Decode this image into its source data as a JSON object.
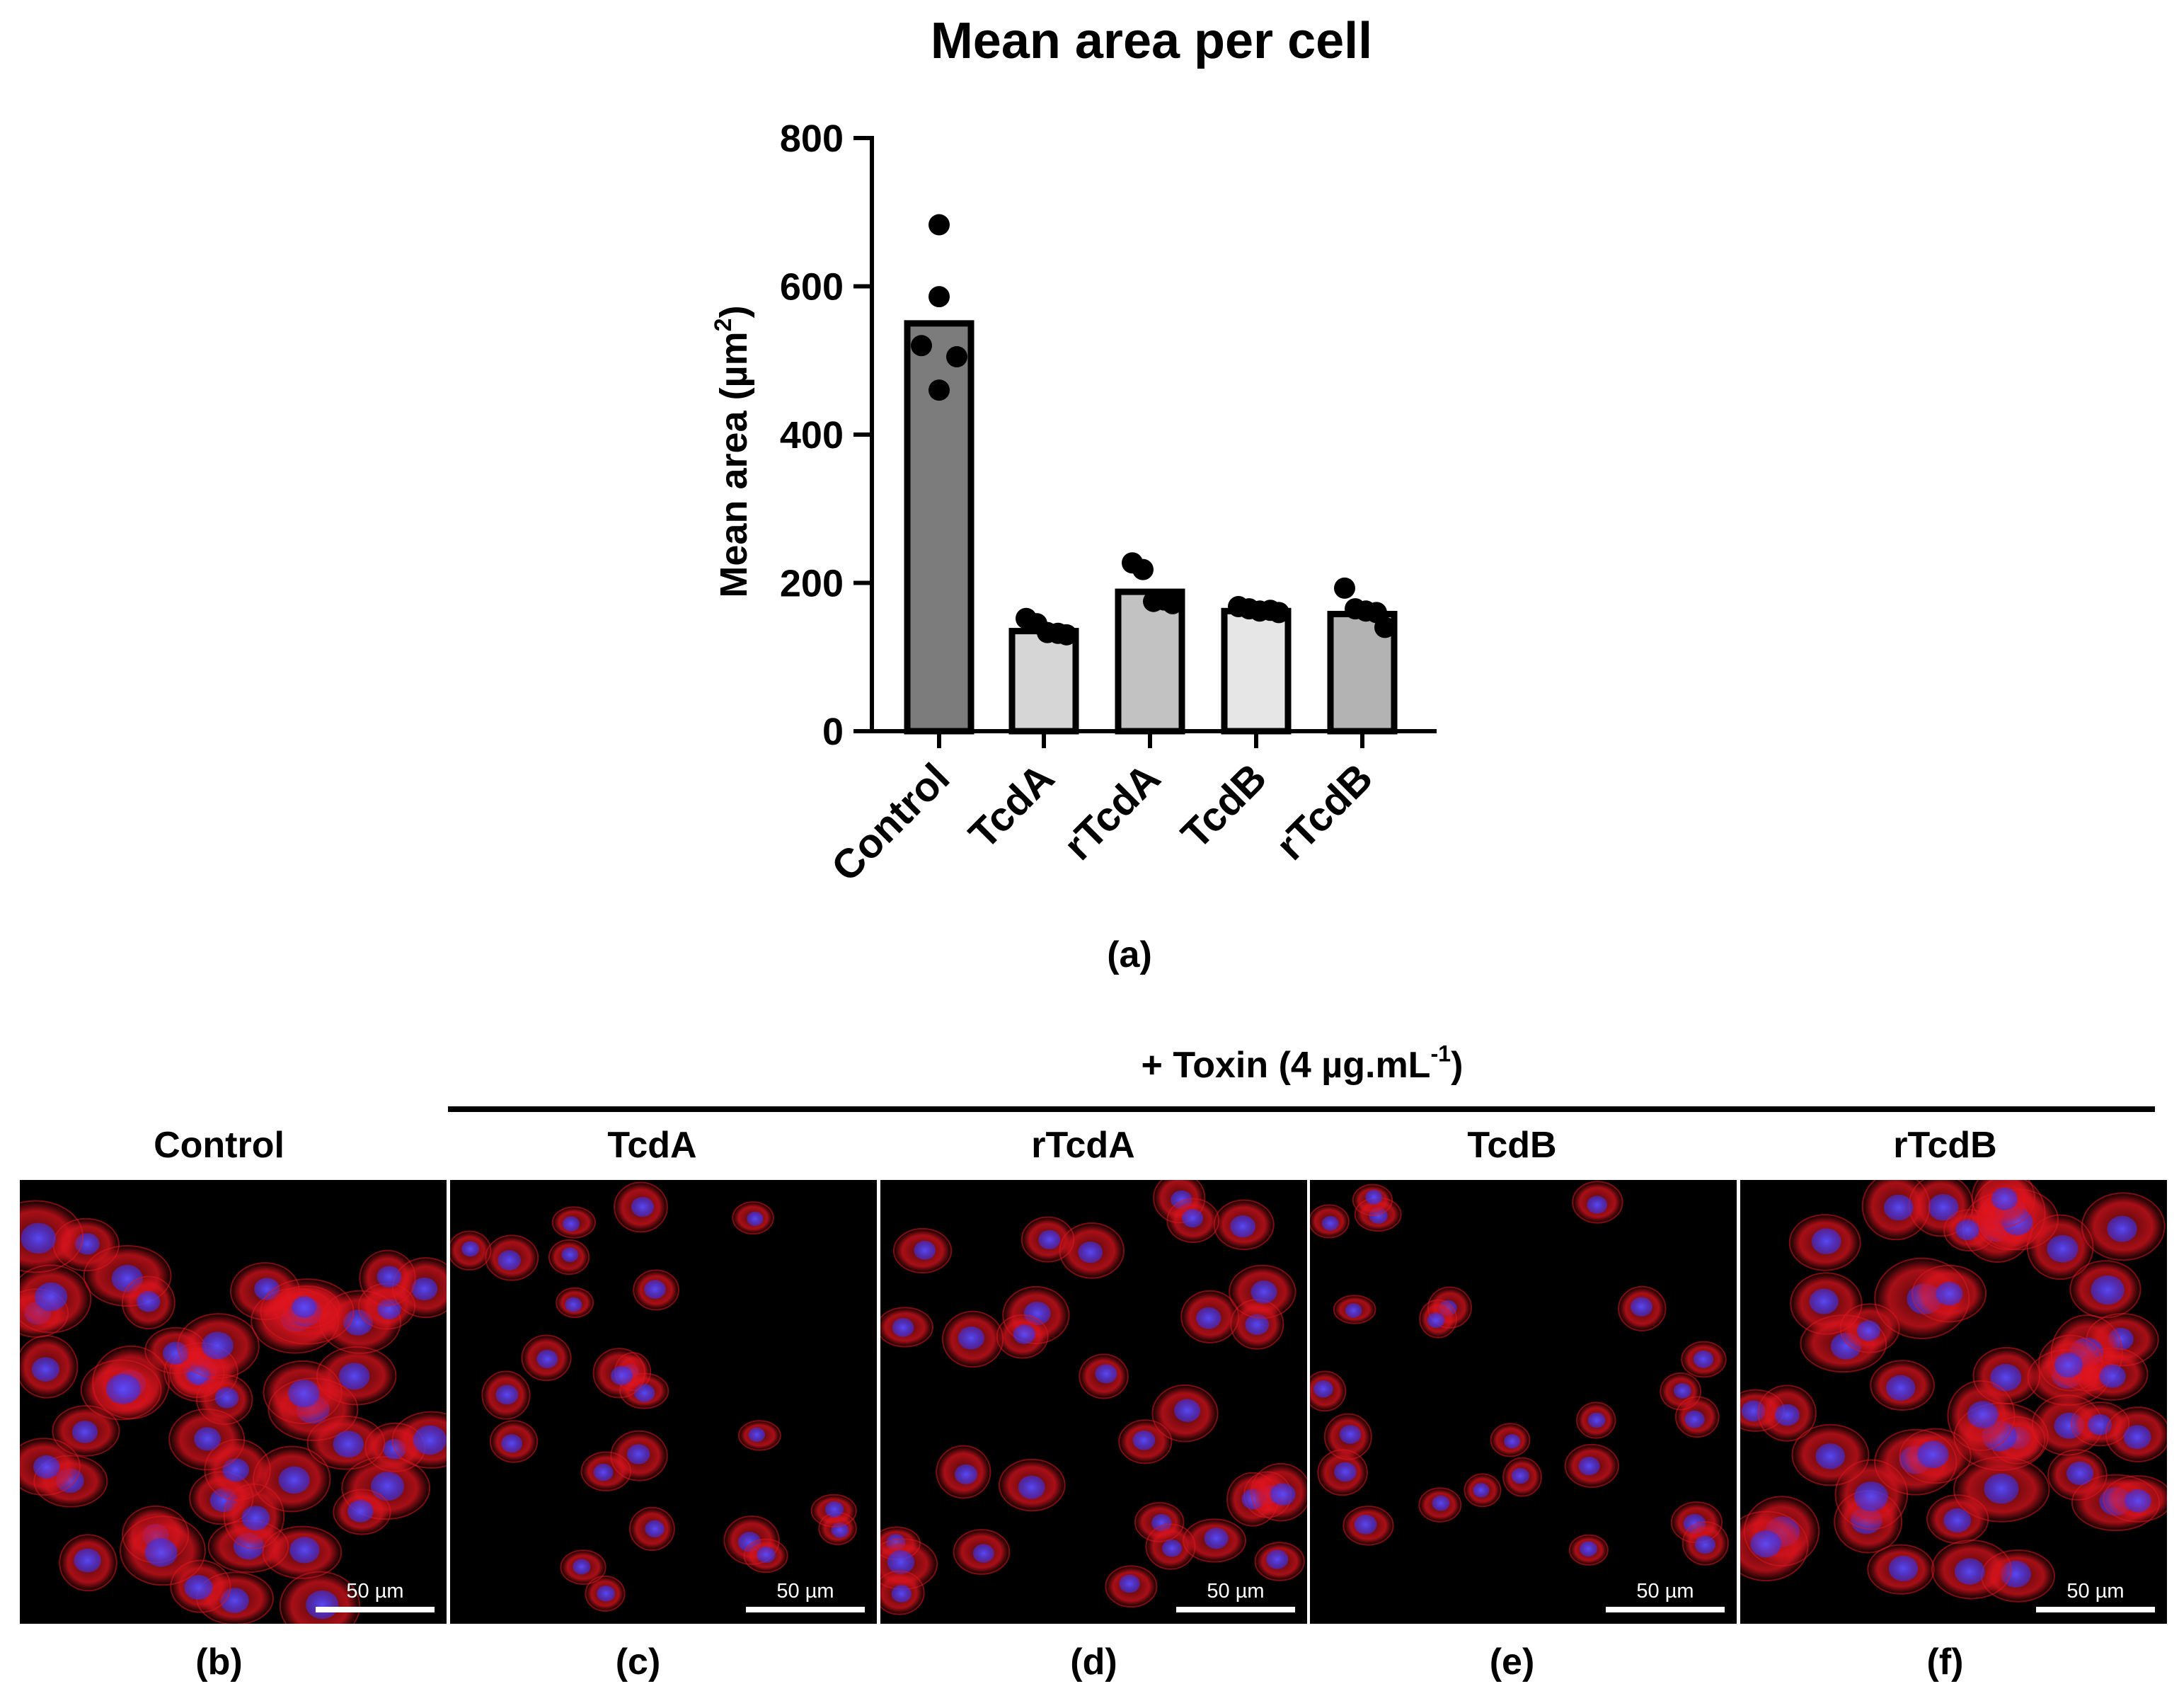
{
  "chart_data": {
    "type": "bar",
    "title": "Mean area per cell",
    "ylabel": "Mean area (µm²)",
    "ylabel_base": "Mean area (µm",
    "ylabel_sup": "2",
    "ylabel_end": ")",
    "xlabel": "",
    "ylim": [
      0,
      800
    ],
    "yticks": [
      0,
      200,
      400,
      600,
      800
    ],
    "categories": [
      "Control",
      "TcdA",
      "rTcdA",
      "TcdB",
      "rTcdB"
    ],
    "values": [
      550,
      135,
      188,
      162,
      158
    ],
    "points": [
      [
        683,
        586,
        520,
        505,
        460
      ],
      [
        152,
        145,
        133,
        132,
        130
      ],
      [
        227,
        218,
        175,
        177,
        172
      ],
      [
        168,
        165,
        162,
        163,
        160
      ],
      [
        193,
        165,
        162,
        160,
        140
      ]
    ],
    "bar_colors": [
      "#7c7c7c",
      "#d6d6d6",
      "#c2c2c2",
      "#e6e6e6",
      "#b3b3b3"
    ],
    "panel_label": "(a)"
  },
  "micrographs": {
    "toxin_header_base": "+ Toxin (4 µg.mL",
    "toxin_header_sup": "-1",
    "toxin_header_end": ")",
    "scale_bar_label": "50 µm",
    "panels": [
      {
        "condition": "Control",
        "label": "(b)",
        "density": "high"
      },
      {
        "condition": "TcdA",
        "label": "(c)",
        "density": "sparse"
      },
      {
        "condition": "rTcdA",
        "label": "(d)",
        "density": "medium"
      },
      {
        "condition": "TcdB",
        "label": "(e)",
        "density": "sparse"
      },
      {
        "condition": "rTcdB",
        "label": "(f)",
        "density": "high"
      }
    ],
    "colors": {
      "actin": "#e0141e",
      "nucleus": "#3b2ee0",
      "background": "#000000"
    }
  }
}
